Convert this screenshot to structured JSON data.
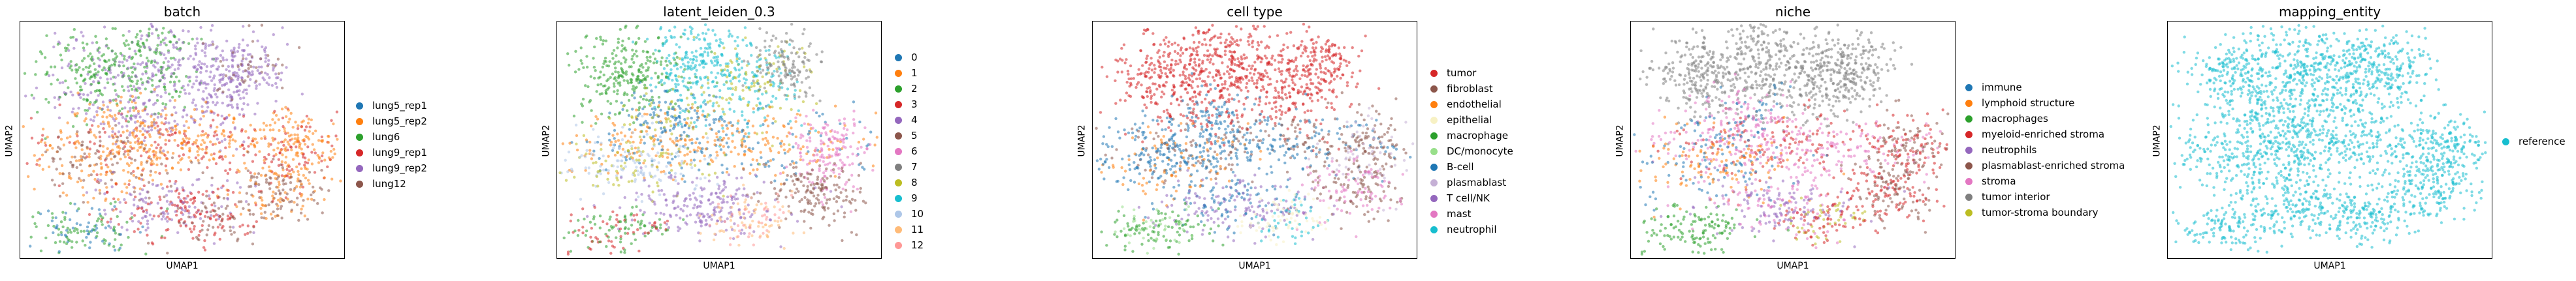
{
  "chart_data": [
    {
      "type": "scatter",
      "title": "batch",
      "xlabel": "UMAP1",
      "ylabel": "UMAP2",
      "legend": [
        {
          "label": "lung5_rep1",
          "color": "#1f77b4"
        },
        {
          "label": "lung5_rep2",
          "color": "#ff7f0e"
        },
        {
          "label": "lung6",
          "color": "#2ca02c"
        },
        {
          "label": "lung9_rep1",
          "color": "#d62728"
        },
        {
          "label": "lung9_rep2",
          "color": "#9467bd"
        },
        {
          "label": "lung12",
          "color": "#8c564b"
        }
      ]
    },
    {
      "type": "scatter",
      "title": "latent_leiden_0.3",
      "xlabel": "UMAP1",
      "ylabel": "UMAP2",
      "legend": [
        {
          "label": "0",
          "color": "#1f77b4"
        },
        {
          "label": "1",
          "color": "#ff7f0e"
        },
        {
          "label": "2",
          "color": "#2ca02c"
        },
        {
          "label": "3",
          "color": "#d62728"
        },
        {
          "label": "4",
          "color": "#9467bd"
        },
        {
          "label": "5",
          "color": "#8c564b"
        },
        {
          "label": "6",
          "color": "#e377c2"
        },
        {
          "label": "7",
          "color": "#7f7f7f"
        },
        {
          "label": "8",
          "color": "#bcbd22"
        },
        {
          "label": "9",
          "color": "#17becf"
        },
        {
          "label": "10",
          "color": "#aec7e8"
        },
        {
          "label": "11",
          "color": "#ffbb78"
        },
        {
          "label": "12",
          "color": "#ff9896"
        }
      ]
    },
    {
      "type": "scatter",
      "title": "cell type",
      "xlabel": "UMAP1",
      "ylabel": "UMAP2",
      "legend": [
        {
          "label": "tumor",
          "color": "#d62728"
        },
        {
          "label": "fibroblast",
          "color": "#8c564b"
        },
        {
          "label": "endothelial",
          "color": "#ff7f0e"
        },
        {
          "label": "epithelial",
          "color": "#f7f1c4"
        },
        {
          "label": "macrophage",
          "color": "#2ca02c"
        },
        {
          "label": "DC/monocyte",
          "color": "#98df8a"
        },
        {
          "label": "B-cell",
          "color": "#1f77b4"
        },
        {
          "label": "plasmablast",
          "color": "#c5b0d5"
        },
        {
          "label": "T cell/NK",
          "color": "#9467bd"
        },
        {
          "label": "mast",
          "color": "#e377c2"
        },
        {
          "label": "neutrophil",
          "color": "#17becf"
        }
      ]
    },
    {
      "type": "scatter",
      "title": "niche",
      "xlabel": "UMAP1",
      "ylabel": "UMAP2",
      "legend": [
        {
          "label": "immune",
          "color": "#1f77b4"
        },
        {
          "label": "lymphoid structure",
          "color": "#ff7f0e"
        },
        {
          "label": "macrophages",
          "color": "#2ca02c"
        },
        {
          "label": "myeloid-enriched stroma",
          "color": "#d62728"
        },
        {
          "label": "neutrophils",
          "color": "#9467bd"
        },
        {
          "label": "plasmablast-enriched stroma",
          "color": "#8c564b"
        },
        {
          "label": "stroma",
          "color": "#e377c2"
        },
        {
          "label": "tumor interior",
          "color": "#7f7f7f"
        },
        {
          "label": "tumor-stroma boundary",
          "color": "#bcbd22"
        }
      ]
    },
    {
      "type": "scatter",
      "title": "mapping_entity",
      "xlabel": "UMAP1",
      "ylabel": "UMAP2",
      "legend": [
        {
          "label": "reference",
          "color": "#17becf"
        }
      ]
    }
  ]
}
